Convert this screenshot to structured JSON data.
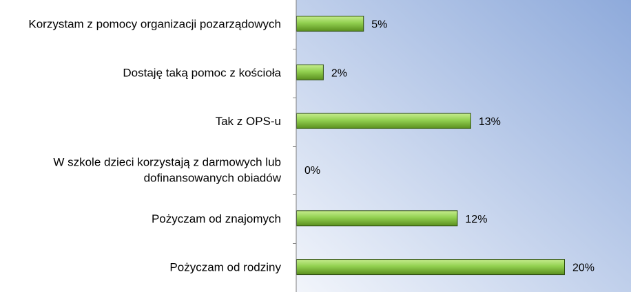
{
  "chart_data": {
    "type": "bar",
    "orientation": "horizontal",
    "categories": [
      "Korzystam z pomocy organizacji pozarządowych",
      "Dostaję taką pomoc z kościoła",
      "Tak z OPS-u",
      "W szkole dzieci korzystają z darmowych lub dofinansowanych obiadów",
      "Pożyczam od znajomych",
      "Pożyczam od rodziny"
    ],
    "category_lines": [
      [
        "Korzystam z pomocy organizacji pozarządowych"
      ],
      [
        "Dostaję taką pomoc z kościoła"
      ],
      [
        "Tak z OPS-u"
      ],
      [
        "W szkole dzieci korzystają z darmowych lub",
        "dofinansowanych obiadów"
      ],
      [
        "Pożyczam od znajomych"
      ],
      [
        "Pożyczam od rodziny"
      ]
    ],
    "values": [
      5,
      2,
      13,
      0,
      12,
      20
    ],
    "value_labels": [
      "5%",
      "2%",
      "13%",
      "0%",
      "12%",
      "20%"
    ],
    "value_unit": "%",
    "xlim": [
      0,
      25
    ],
    "grid": false,
    "legend": "none",
    "colors": {
      "bar": "#92d050",
      "bar_light": "#c6ec8e",
      "bar_dark": "#5a8f1e",
      "bar_edge": "#2f4f10",
      "plot_bg_top_right": "#8eaadb",
      "plot_bg_bottom_left": "#f2f5fb",
      "axis": "#7f7f7f"
    }
  }
}
